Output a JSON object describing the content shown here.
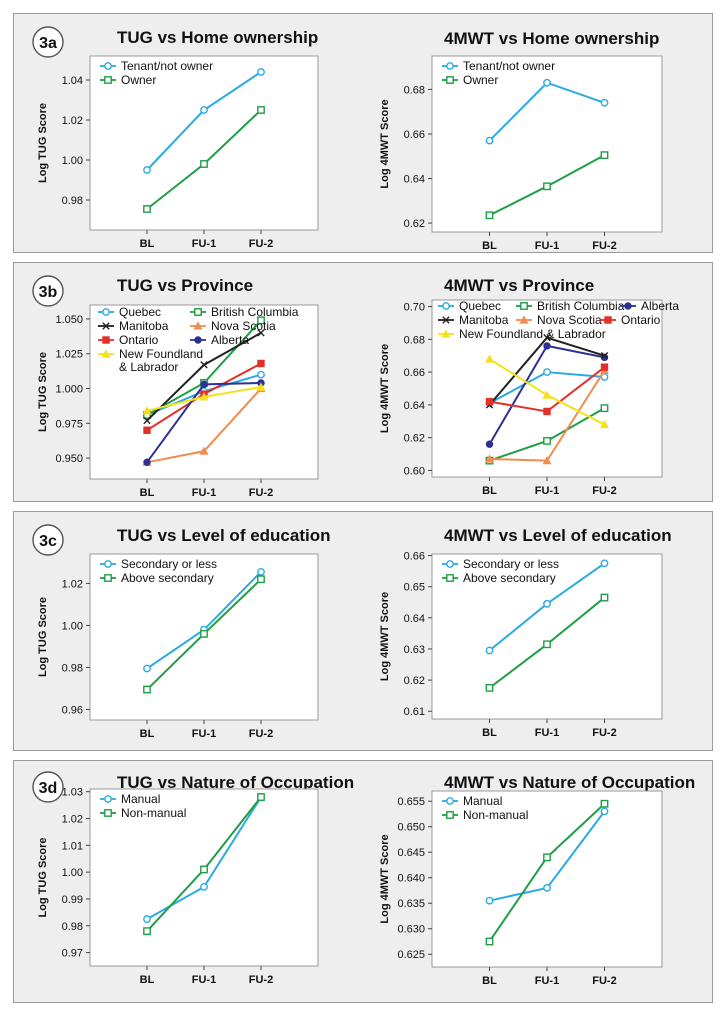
{
  "figure": {
    "panels": [
      {
        "label": "3a",
        "charts": [
          {
            "type": "line",
            "title": "TUG vs Home ownership",
            "ylabel": "Log TUG Score",
            "categories": [
              "BL",
              "FU-1",
              "FU-2"
            ],
            "ylim": [
              0.965,
              1.052
            ],
            "yticks": [
              "0.98",
              "1.00",
              "1.02",
              "1.04"
            ],
            "legend_layout": "single",
            "series": [
              {
                "name": "Tenant/not owner",
                "color": "#29abe2",
                "marker": "circle",
                "values": [
                  0.995,
                  1.025,
                  1.044
                ]
              },
              {
                "name": "Owner",
                "color": "#1f9e46",
                "marker": "square",
                "values": [
                  0.9755,
                  0.998,
                  1.025
                ]
              }
            ]
          },
          {
            "type": "line",
            "title": "4MWT vs Home ownership",
            "ylabel": "Log 4MWT Score",
            "categories": [
              "BL",
              "FU-1",
              "FU-2"
            ],
            "ylim": [
              0.616,
              0.695
            ],
            "yticks": [
              "0.62",
              "0.64",
              "0.66",
              "0.68"
            ],
            "legend_layout": "single",
            "series": [
              {
                "name": "Tenant/not owner",
                "color": "#29abe2",
                "marker": "circle",
                "values": [
                  0.657,
                  0.683,
                  0.674
                ]
              },
              {
                "name": "Owner",
                "color": "#1f9e46",
                "marker": "square",
                "values": [
                  0.6235,
                  0.6365,
                  0.6505
                ]
              }
            ]
          }
        ]
      },
      {
        "label": "3b",
        "charts": [
          {
            "type": "line",
            "title": "TUG vs Province",
            "ylabel": "Log TUG Score",
            "categories": [
              "BL",
              "FU-1",
              "FU-2"
            ],
            "ylim": [
              0.935,
              1.06
            ],
            "yticks": [
              "0.950",
              "0.975",
              "1.000",
              "1.025",
              "1.050"
            ],
            "legend_layout": "province-tug",
            "series": [
              {
                "name": "Quebec",
                "color": "#29abe2",
                "marker": "circle",
                "values": [
                  0.981,
                  0.998,
                  1.01
                ]
              },
              {
                "name": "British Columbia",
                "color": "#1f9e46",
                "marker": "square",
                "values": [
                  0.981,
                  1.004,
                  1.049
                ]
              },
              {
                "name": "Manitoba",
                "color": "#222222",
                "marker": "x",
                "values": [
                  0.977,
                  1.017,
                  1.04
                ]
              },
              {
                "name": "Nova Scotia",
                "color": "#f28c4e",
                "marker": "triangle",
                "values": [
                  0.947,
                  0.955,
                  1.0
                ]
              },
              {
                "name": "Ontario",
                "color": "#e0312a",
                "marker": "square-filled",
                "values": [
                  0.97,
                  0.996,
                  1.018
                ]
              },
              {
                "name": "Alberta",
                "color": "#2e3192",
                "marker": "circle-filled",
                "values": [
                  0.947,
                  1.003,
                  1.004
                ]
              },
              {
                "name": "New Foundland & Labrador",
                "color": "#f5e11a",
                "marker": "triangle",
                "values": [
                  0.984,
                  0.994,
                  1.001
                ]
              }
            ]
          },
          {
            "type": "line",
            "title": "4MWT vs Province",
            "ylabel": "Log 4MWT Score",
            "categories": [
              "BL",
              "FU-1",
              "FU-2"
            ],
            "ylim": [
              0.596,
              0.704
            ],
            "yticks": [
              "0.60",
              "0.62",
              "0.64",
              "0.66",
              "0.68",
              "0.70"
            ],
            "legend_layout": "province-4mwt",
            "series": [
              {
                "name": "Quebec",
                "color": "#29abe2",
                "marker": "circle",
                "values": [
                  0.641,
                  0.66,
                  0.657
                ]
              },
              {
                "name": "British Columbia",
                "color": "#1f9e46",
                "marker": "square",
                "values": [
                  0.606,
                  0.618,
                  0.638
                ]
              },
              {
                "name": "Alberta",
                "color": "#2e3192",
                "marker": "circle-filled",
                "values": [
                  0.616,
                  0.676,
                  0.669
                ]
              },
              {
                "name": "Manitoba",
                "color": "#222222",
                "marker": "x",
                "values": [
                  0.64,
                  0.681,
                  0.67
                ]
              },
              {
                "name": "Nova Scotia",
                "color": "#f28c4e",
                "marker": "triangle",
                "values": [
                  0.607,
                  0.606,
                  0.661
                ]
              },
              {
                "name": "Ontario",
                "color": "#e0312a",
                "marker": "square-filled",
                "values": [
                  0.642,
                  0.636,
                  0.663
                ]
              },
              {
                "name": "New Foundland & Labrador",
                "color": "#f5e11a",
                "marker": "triangle",
                "values": [
                  0.668,
                  0.646,
                  0.628
                ]
              }
            ]
          }
        ]
      },
      {
        "label": "3c",
        "charts": [
          {
            "type": "line",
            "title": "TUG vs Level of education",
            "ylabel": "Log TUG Score",
            "categories": [
              "BL",
              "FU-1",
              "FU-2"
            ],
            "ylim": [
              0.955,
              1.034
            ],
            "yticks": [
              "0.96",
              "0.98",
              "1.00",
              "1.02"
            ],
            "legend_layout": "single",
            "series": [
              {
                "name": "Secondary or less",
                "color": "#29abe2",
                "marker": "circle",
                "values": [
                  0.9795,
                  0.998,
                  1.0255
                ]
              },
              {
                "name": "Above secondary",
                "color": "#1f9e46",
                "marker": "square",
                "values": [
                  0.9695,
                  0.996,
                  1.022
                ]
              }
            ]
          },
          {
            "type": "line",
            "title": "4MWT vs Level of education",
            "ylabel": "Log 4MWT Score",
            "categories": [
              "BL",
              "FU-1",
              "FU-2"
            ],
            "ylim": [
              0.6075,
              0.6605
            ],
            "yticks": [
              "0.61",
              "0.62",
              "0.63",
              "0.64",
              "0.65",
              "0.66"
            ],
            "legend_layout": "single",
            "series": [
              {
                "name": "Secondary or less",
                "color": "#29abe2",
                "marker": "circle",
                "values": [
                  0.6295,
                  0.6445,
                  0.6575
                ]
              },
              {
                "name": "Above secondary",
                "color": "#1f9e46",
                "marker": "square",
                "values": [
                  0.6175,
                  0.6315,
                  0.6465
                ]
              }
            ]
          }
        ]
      },
      {
        "label": "3d",
        "charts": [
          {
            "type": "line",
            "title": "TUG vs Nature of Occupation",
            "ylabel": "Log TUG Score",
            "categories": [
              "BL",
              "FU-1",
              "FU-2"
            ],
            "ylim": [
              0.965,
              1.031
            ],
            "yticks": [
              "0.97",
              "0.98",
              "0.99",
              "1.00",
              "1.01",
              "1.02",
              "1.03"
            ],
            "legend_layout": "single",
            "series": [
              {
                "name": "Manual",
                "color": "#29abe2",
                "marker": "circle",
                "values": [
                  0.9825,
                  0.9945,
                  1.028
                ]
              },
              {
                "name": "Non-manual",
                "color": "#1f9e46",
                "marker": "square",
                "values": [
                  0.978,
                  1.001,
                  1.028
                ]
              }
            ]
          },
          {
            "type": "line",
            "title": "4MWT vs Nature of Occupation",
            "ylabel": "Log 4MWT Score",
            "categories": [
              "BL",
              "FU-1",
              "FU-2"
            ],
            "ylim": [
              0.6225,
              0.657
            ],
            "yticks": [
              "0.625",
              "0.630",
              "0.635",
              "0.640",
              "0.645",
              "0.650",
              "0.655"
            ],
            "legend_layout": "single",
            "series": [
              {
                "name": "Manual",
                "color": "#29abe2",
                "marker": "circle",
                "values": [
                  0.6355,
                  0.638,
                  0.653
                ]
              },
              {
                "name": "Non-manual",
                "color": "#1f9e46",
                "marker": "square",
                "values": [
                  0.6275,
                  0.644,
                  0.6545
                ]
              }
            ]
          }
        ]
      }
    ]
  },
  "chart_data": [
    {
      "type": "line",
      "title": "TUG vs Home ownership",
      "ylabel": "Log TUG Score",
      "categories": [
        "BL",
        "FU-1",
        "FU-2"
      ],
      "ylim": [
        0.965,
        1.052
      ],
      "series": [
        {
          "name": "Tenant/not owner",
          "values": [
            0.995,
            1.025,
            1.044
          ]
        },
        {
          "name": "Owner",
          "values": [
            0.9755,
            0.998,
            1.025
          ]
        }
      ]
    },
    {
      "type": "line",
      "title": "4MWT vs Home ownership",
      "ylabel": "Log 4MWT Score",
      "categories": [
        "BL",
        "FU-1",
        "FU-2"
      ],
      "ylim": [
        0.616,
        0.695
      ],
      "series": [
        {
          "name": "Tenant/not owner",
          "values": [
            0.657,
            0.683,
            0.674
          ]
        },
        {
          "name": "Owner",
          "values": [
            0.6235,
            0.6365,
            0.6505
          ]
        }
      ]
    },
    {
      "type": "line",
      "title": "TUG vs Province",
      "ylabel": "Log TUG Score",
      "categories": [
        "BL",
        "FU-1",
        "FU-2"
      ],
      "ylim": [
        0.935,
        1.06
      ],
      "series": [
        {
          "name": "Quebec",
          "values": [
            0.981,
            0.998,
            1.01
          ]
        },
        {
          "name": "British Columbia",
          "values": [
            0.981,
            1.004,
            1.049
          ]
        },
        {
          "name": "Manitoba",
          "values": [
            0.977,
            1.017,
            1.04
          ]
        },
        {
          "name": "Nova Scotia",
          "values": [
            0.947,
            0.955,
            1.0
          ]
        },
        {
          "name": "Ontario",
          "values": [
            0.97,
            0.996,
            1.018
          ]
        },
        {
          "name": "Alberta",
          "values": [
            0.947,
            1.003,
            1.004
          ]
        },
        {
          "name": "New Foundland & Labrador",
          "values": [
            0.984,
            0.994,
            1.001
          ]
        }
      ]
    },
    {
      "type": "line",
      "title": "4MWT vs Province",
      "ylabel": "Log 4MWT Score",
      "categories": [
        "BL",
        "FU-1",
        "FU-2"
      ],
      "ylim": [
        0.596,
        0.704
      ],
      "series": [
        {
          "name": "Quebec",
          "values": [
            0.641,
            0.66,
            0.657
          ]
        },
        {
          "name": "British Columbia",
          "values": [
            0.606,
            0.618,
            0.638
          ]
        },
        {
          "name": "Alberta",
          "values": [
            0.616,
            0.676,
            0.669
          ]
        },
        {
          "name": "Manitoba",
          "values": [
            0.64,
            0.681,
            0.67
          ]
        },
        {
          "name": "Nova Scotia",
          "values": [
            0.607,
            0.606,
            0.661
          ]
        },
        {
          "name": "Ontario",
          "values": [
            0.642,
            0.636,
            0.663
          ]
        },
        {
          "name": "New Foundland & Labrador",
          "values": [
            0.668,
            0.646,
            0.628
          ]
        }
      ]
    },
    {
      "type": "line",
      "title": "TUG vs Level of education",
      "ylabel": "Log TUG Score",
      "categories": [
        "BL",
        "FU-1",
        "FU-2"
      ],
      "ylim": [
        0.955,
        1.034
      ],
      "series": [
        {
          "name": "Secondary or less",
          "values": [
            0.9795,
            0.998,
            1.0255
          ]
        },
        {
          "name": "Above secondary",
          "values": [
            0.9695,
            0.996,
            1.022
          ]
        }
      ]
    },
    {
      "type": "line",
      "title": "4MWT vs Level of education",
      "ylabel": "Log 4MWT Score",
      "categories": [
        "BL",
        "FU-1",
        "FU-2"
      ],
      "ylim": [
        0.6075,
        0.6605
      ],
      "series": [
        {
          "name": "Secondary or less",
          "values": [
            0.6295,
            0.6445,
            0.6575
          ]
        },
        {
          "name": "Above secondary",
          "values": [
            0.6175,
            0.6315,
            0.6465
          ]
        }
      ]
    },
    {
      "type": "line",
      "title": "TUG vs Nature of Occupation",
      "ylabel": "Log TUG Score",
      "categories": [
        "BL",
        "FU-1",
        "FU-2"
      ],
      "ylim": [
        0.965,
        1.031
      ],
      "series": [
        {
          "name": "Manual",
          "values": [
            0.9825,
            0.9945,
            1.028
          ]
        },
        {
          "name": "Non-manual",
          "values": [
            0.978,
            1.001,
            1.028
          ]
        }
      ]
    },
    {
      "type": "line",
      "title": "4MWT vs Nature of Occupation",
      "ylabel": "Log 4MWT Score",
      "categories": [
        "BL",
        "FU-1",
        "FU-2"
      ],
      "ylim": [
        0.6225,
        0.657
      ],
      "series": [
        {
          "name": "Manual",
          "values": [
            0.6355,
            0.638,
            0.653
          ]
        },
        {
          "name": "Non-manual",
          "values": [
            0.6275,
            0.644,
            0.6545
          ]
        }
      ]
    }
  ]
}
